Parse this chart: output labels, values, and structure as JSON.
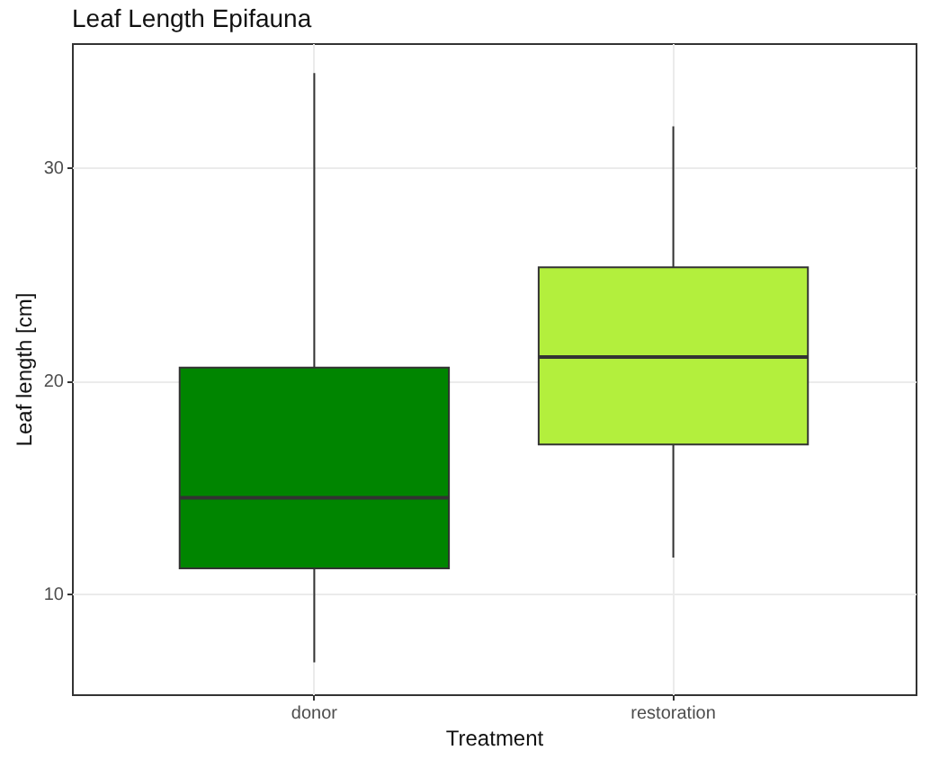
{
  "chart_data": {
    "type": "box",
    "title": "Leaf Length Epifauna",
    "xlabel": "Treatment",
    "ylabel": "Leaf length [cm]",
    "categories": [
      "donor",
      "restoration"
    ],
    "boxes": [
      {
        "low": 6.8,
        "q1": 11.2,
        "median": 14.5,
        "q3": 20.6,
        "high": 34.4
      },
      {
        "low": 11.7,
        "q1": 17.0,
        "median": 21.1,
        "q3": 25.3,
        "high": 31.9
      }
    ],
    "colors": [
      "#008500",
      "#b3ef3d"
    ],
    "ylim": [
      5.3,
      35.8
    ],
    "yticks": [
      10,
      20,
      30
    ],
    "grid": true,
    "legend": false
  }
}
